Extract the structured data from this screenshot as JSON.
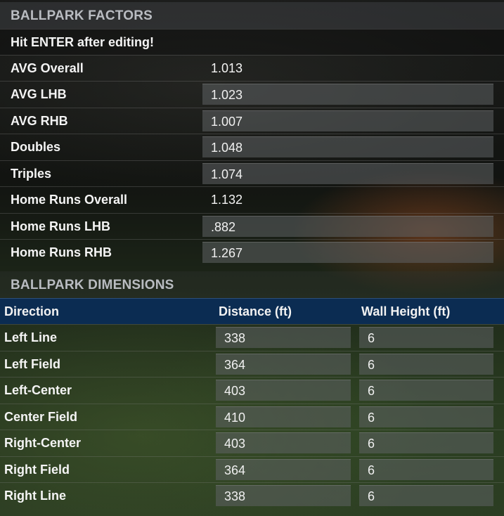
{
  "factors": {
    "title": "BALLPARK FACTORS",
    "note": "Hit ENTER after editing!",
    "rows": [
      {
        "label": "AVG Overall",
        "value": "1.013",
        "editable": false
      },
      {
        "label": "AVG LHB",
        "value": "1.023",
        "editable": true
      },
      {
        "label": "AVG RHB",
        "value": "1.007",
        "editable": true
      },
      {
        "label": "Doubles",
        "value": "1.048",
        "editable": true
      },
      {
        "label": "Triples",
        "value": "1.074",
        "editable": true
      },
      {
        "label": "Home Runs Overall",
        "value": "1.132",
        "editable": false
      },
      {
        "label": "Home Runs LHB",
        "value": ".882",
        "editable": true
      },
      {
        "label": "Home Runs RHB",
        "value": "1.267",
        "editable": true
      }
    ]
  },
  "dimensions": {
    "title": "BALLPARK DIMENSIONS",
    "columns": {
      "direction": "Direction",
      "distance": "Distance (ft)",
      "wall_height": "Wall Height (ft)"
    },
    "rows": [
      {
        "direction": "Left Line",
        "distance": "338",
        "wall_height": "6"
      },
      {
        "direction": "Left Field",
        "distance": "364",
        "wall_height": "6"
      },
      {
        "direction": "Left-Center",
        "distance": "403",
        "wall_height": "6"
      },
      {
        "direction": "Center Field",
        "distance": "410",
        "wall_height": "6"
      },
      {
        "direction": "Right-Center",
        "distance": "403",
        "wall_height": "6"
      },
      {
        "direction": "Right Field",
        "distance": "364",
        "wall_height": "6"
      },
      {
        "direction": "Right Line",
        "distance": "338",
        "wall_height": "6"
      }
    ]
  },
  "colors": {
    "table_header_bg": "#0b2c52",
    "section_header_text": "#b9bcc1",
    "field_bg": "#5f6264"
  }
}
